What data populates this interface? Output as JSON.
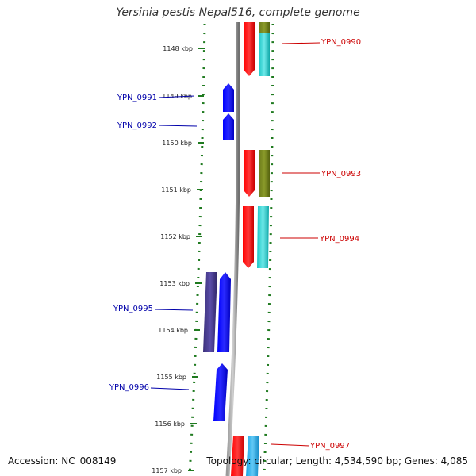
{
  "title": "Yersinia pestis Nepal516, complete genome",
  "accession": "Accession: NC_008149",
  "topology": "Topology: circular; Length: 4,534,590 bp; Genes: 4,085",
  "colors": {
    "axis_dots": "#1f7a1f",
    "backbone": "#808080",
    "forward_gene": "#ff0000",
    "reverse_gene": "#0000ff",
    "label_forward": "#cc0000",
    "label_reverse": "#0000aa",
    "cog_cyan": "#1ac6c6",
    "cog_olive": "#6b7a1a",
    "cog_purple": "#4b3d8f",
    "cog_skyblue": "#1aa6e6"
  },
  "scale_ticks": [
    {
      "label": "1148 kbp"
    },
    {
      "label": "1149 kbp"
    },
    {
      "label": "1150 kbp"
    },
    {
      "label": "1151 kbp"
    },
    {
      "label": "1152 kbp"
    },
    {
      "label": "1153 kbp"
    },
    {
      "label": "1154 kbp"
    },
    {
      "label": "1155 kbp"
    },
    {
      "label": "1156 kbp"
    },
    {
      "label": "1157 kbp"
    }
  ],
  "genes": [
    {
      "name": "YPN_0990",
      "strand": "forward",
      "cog_color": "olive_cyan"
    },
    {
      "name": "YPN_0991",
      "strand": "reverse"
    },
    {
      "name": "YPN_0992",
      "strand": "reverse"
    },
    {
      "name": "YPN_0993",
      "strand": "forward",
      "cog_color": "olive"
    },
    {
      "name": "YPN_0994",
      "strand": "forward",
      "cog_color": "cyan"
    },
    {
      "name": "YPN_0995",
      "strand": "reverse",
      "cog_color": "purple"
    },
    {
      "name": "YPN_0996",
      "strand": "reverse"
    },
    {
      "name": "YPN_0997",
      "strand": "forward",
      "cog_color": "skyblue"
    }
  ]
}
